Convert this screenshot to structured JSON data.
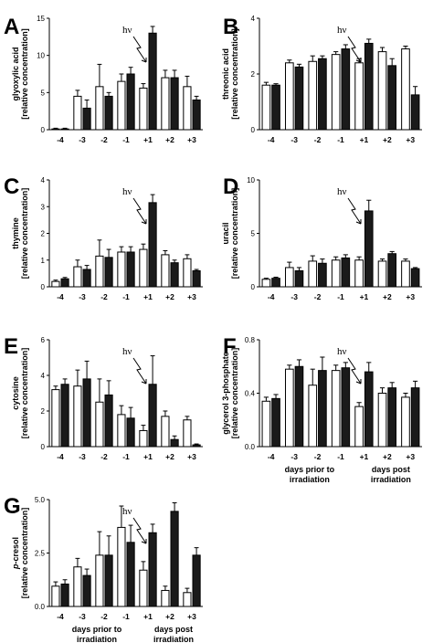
{
  "chart_data": [
    {
      "type": "bar",
      "panel": "A",
      "ylabel": [
        "glyoxylic acid",
        "[relative concentration]"
      ],
      "ylim": [
        0,
        15
      ],
      "yticks": [
        0,
        5,
        10,
        15
      ],
      "categories": [
        "-4",
        "-3",
        "-2",
        "-1",
        "+1",
        "+2",
        "+3"
      ],
      "series": [
        {
          "values": [
            0.1,
            4.5,
            5.8,
            6.5,
            5.6,
            7.0,
            5.8
          ],
          "errors": [
            0.1,
            0.8,
            3.0,
            1.0,
            0.6,
            1.0,
            1.4
          ]
        },
        {
          "values": [
            0.1,
            2.9,
            4.5,
            7.5,
            13.0,
            7.0,
            4.0
          ],
          "errors": [
            0.1,
            1.1,
            0.5,
            0.9,
            0.9,
            1.0,
            0.5
          ]
        }
      ],
      "annotation": "hν",
      "annotation_target": "-1"
    },
    {
      "type": "bar",
      "panel": "B",
      "ylabel": [
        "threonic acid",
        "[relative concentration]"
      ],
      "ylim": [
        0,
        4
      ],
      "yticks": [
        0,
        2,
        4
      ],
      "categories": [
        "-4",
        "-3",
        "-2",
        "-1",
        "+1",
        "+2",
        "+3"
      ],
      "series": [
        {
          "values": [
            1.6,
            2.4,
            2.45,
            2.7,
            2.4,
            2.8,
            2.9
          ],
          "errors": [
            0.1,
            0.1,
            0.2,
            0.1,
            0.15,
            0.15,
            0.1
          ]
        },
        {
          "values": [
            1.6,
            2.25,
            2.55,
            2.9,
            3.1,
            2.3,
            1.25
          ],
          "errors": [
            0.05,
            0.1,
            0.1,
            0.15,
            0.15,
            0.25,
            0.3
          ]
        }
      ],
      "annotation": "hν",
      "annotation_target": "-1"
    },
    {
      "type": "bar",
      "panel": "C",
      "ylabel": [
        "thymine",
        "[relative concentration]"
      ],
      "ylim": [
        0,
        4
      ],
      "yticks": [
        0,
        1,
        2,
        3,
        4
      ],
      "categories": [
        "-4",
        "-3",
        "-2",
        "-1",
        "+1",
        "+2",
        "+3"
      ],
      "series": [
        {
          "values": [
            0.2,
            0.75,
            1.15,
            1.3,
            1.4,
            1.2,
            1.05
          ],
          "errors": [
            0.05,
            0.25,
            0.6,
            0.2,
            0.2,
            0.15,
            0.15
          ]
        },
        {
          "values": [
            0.3,
            0.65,
            1.1,
            1.3,
            3.15,
            0.9,
            0.6
          ],
          "errors": [
            0.05,
            0.15,
            0.3,
            0.2,
            0.3,
            0.1,
            0.05
          ]
        }
      ],
      "annotation": "hν",
      "annotation_target": "-1"
    },
    {
      "type": "bar",
      "panel": "D",
      "ylabel": [
        "uracil",
        "[relative concentration]"
      ],
      "ylim": [
        0,
        10
      ],
      "yticks": [
        0,
        5,
        10
      ],
      "categories": [
        "-4",
        "-3",
        "-2",
        "-1",
        "+1",
        "+2",
        "+3"
      ],
      "series": [
        {
          "values": [
            0.7,
            1.8,
            2.4,
            2.5,
            2.5,
            2.4,
            2.4
          ],
          "errors": [
            0.1,
            0.5,
            0.5,
            0.3,
            0.3,
            0.2,
            0.2
          ]
        },
        {
          "values": [
            0.8,
            1.5,
            2.2,
            2.7,
            7.1,
            3.1,
            1.7
          ],
          "errors": [
            0.1,
            0.3,
            0.4,
            0.3,
            1.0,
            0.2,
            0.1
          ]
        }
      ],
      "annotation": "hν",
      "annotation_target": "-1"
    },
    {
      "type": "bar",
      "panel": "E",
      "ylabel": [
        "cytosine",
        "[relative concentration]"
      ],
      "ylim": [
        0,
        6
      ],
      "yticks": [
        0,
        2,
        4,
        6
      ],
      "categories": [
        "-4",
        "-3",
        "-2",
        "-1",
        "+1",
        "+2",
        "+3"
      ],
      "series": [
        {
          "values": [
            3.2,
            3.4,
            2.5,
            1.8,
            0.9,
            1.7,
            1.5
          ],
          "errors": [
            0.2,
            0.9,
            1.3,
            0.5,
            0.3,
            0.3,
            0.2
          ]
        },
        {
          "values": [
            3.5,
            3.8,
            2.9,
            1.6,
            3.5,
            0.4,
            0.1
          ],
          "errors": [
            0.3,
            1.0,
            0.8,
            0.6,
            1.6,
            0.2,
            0.05
          ]
        }
      ],
      "annotation": "hν",
      "annotation_target": "-1"
    },
    {
      "type": "bar",
      "panel": "F",
      "ylabel": [
        "glycerol 3-phosphate",
        "[relative concentration]"
      ],
      "ylim": [
        0,
        0.8
      ],
      "yticks": [
        0.0,
        0.4,
        0.8
      ],
      "ytick_decimals": 1,
      "categories": [
        "-4",
        "-3",
        "-2",
        "-1",
        "+1",
        "+2",
        "+3"
      ],
      "series": [
        {
          "values": [
            0.34,
            0.58,
            0.46,
            0.57,
            0.3,
            0.4,
            0.37
          ],
          "errors": [
            0.03,
            0.03,
            0.12,
            0.04,
            0.03,
            0.04,
            0.03
          ]
        },
        {
          "values": [
            0.36,
            0.6,
            0.57,
            0.59,
            0.56,
            0.44,
            0.44
          ],
          "errors": [
            0.03,
            0.05,
            0.1,
            0.04,
            0.07,
            0.04,
            0.05
          ]
        }
      ],
      "xgroups": [
        [
          "days prior to",
          "irradiation"
        ],
        [
          "days post",
          "irradiation"
        ]
      ],
      "annotation": "hν",
      "annotation_target": "-1"
    },
    {
      "type": "bar",
      "panel": "G",
      "ylabel": [
        "p-cresol",
        "[relative concentration]"
      ],
      "ylim": [
        0,
        5
      ],
      "yticks": [
        0,
        2.5,
        5
      ],
      "ytick_decimals": 1,
      "categories": [
        "-4",
        "-3",
        "-2",
        "-1",
        "+1",
        "+2",
        "+3"
      ],
      "series": [
        {
          "values": [
            0.95,
            1.85,
            2.4,
            3.7,
            1.7,
            0.75,
            0.65
          ],
          "errors": [
            0.2,
            0.4,
            1.1,
            1.0,
            0.4,
            0.2,
            0.2
          ]
        },
        {
          "values": [
            1.05,
            1.45,
            2.4,
            3.0,
            3.45,
            4.45,
            2.4
          ],
          "errors": [
            0.2,
            0.3,
            0.9,
            0.8,
            0.4,
            0.4,
            0.35
          ]
        }
      ],
      "xgroups": [
        [
          "days prior to",
          "irradiation"
        ],
        [
          "days post",
          "irradiation"
        ]
      ],
      "annotation": "hν",
      "annotation_target": "-1"
    }
  ],
  "colors": {
    "open_bar": "#ffffff",
    "filled_bar": "#1a1a1a",
    "axis": "#000000"
  }
}
